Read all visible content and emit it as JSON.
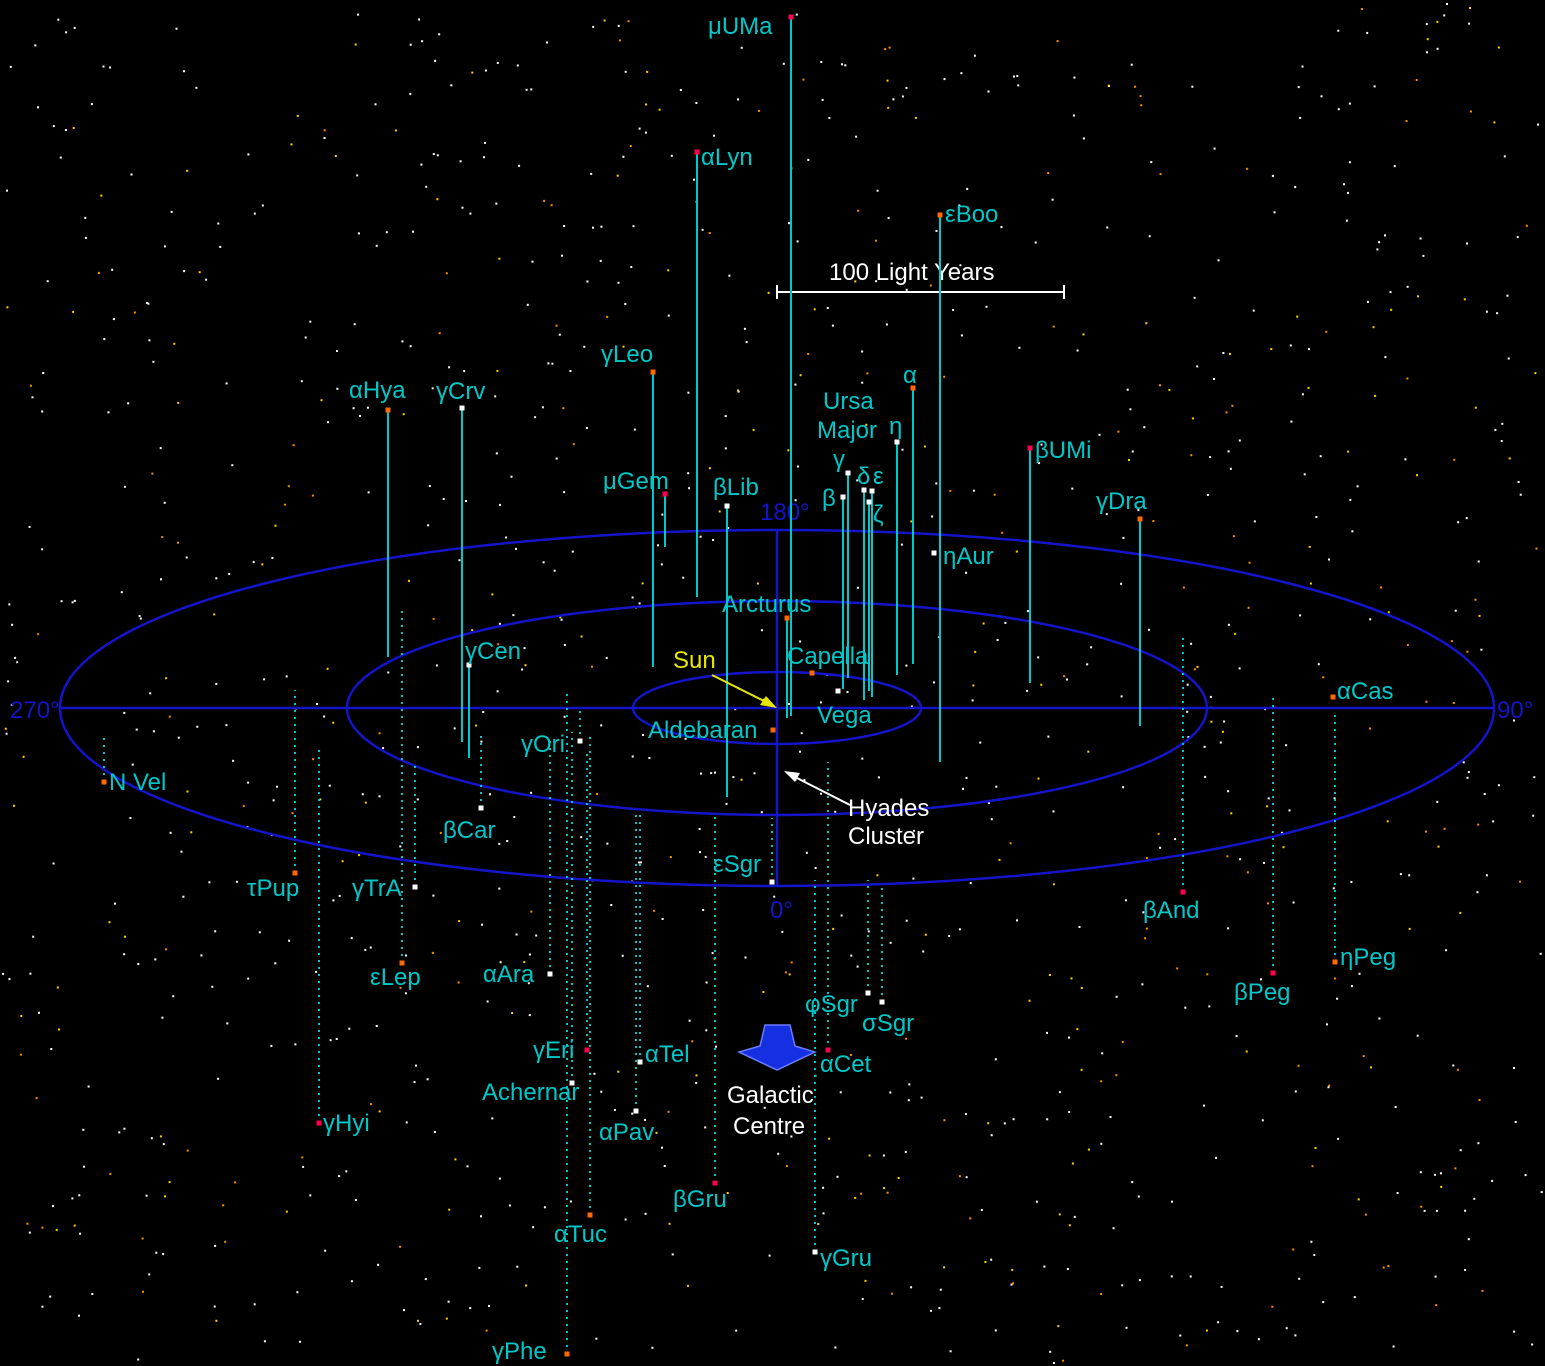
{
  "colors": {
    "background": "#000000",
    "ring": "#1414c8",
    "label": "#00c8c8",
    "stem": "#00c8c8",
    "sun": "#e6e600",
    "white": "#ffffff",
    "marker_orange": "#ff6a00",
    "marker_red": "#ff0050",
    "marker_white": "#ffffff",
    "galactic_centre": "#1530e0"
  },
  "degree_labels": {
    "d0": "0°",
    "d90": "90°",
    "d180": "180°",
    "d270": "270°"
  },
  "scale_bar": {
    "label": "100 Light Years"
  },
  "sun": {
    "label": "Sun"
  },
  "hyades": {
    "line1": "Hyades",
    "line2": "Cluster"
  },
  "galactic_centre": {
    "line1": "Galactic",
    "line2": "Centre"
  },
  "ursa_major": {
    "line1": "Ursa",
    "line2": "Major"
  },
  "stars": [
    {
      "name": "μUMa",
      "above": true
    },
    {
      "name": "αLyn",
      "above": true
    },
    {
      "name": "εBoo",
      "above": true
    },
    {
      "name": "γLeo",
      "above": true
    },
    {
      "name": "αHya",
      "above": true
    },
    {
      "name": "γCrv",
      "above": true
    },
    {
      "name": "α",
      "above": true
    },
    {
      "name": "η",
      "above": true
    },
    {
      "name": "βUMi",
      "above": true
    },
    {
      "name": "μGem",
      "above": true
    },
    {
      "name": "βLib",
      "above": true
    },
    {
      "name": "γ",
      "above": true
    },
    {
      "name": "δ",
      "above": true
    },
    {
      "name": "ε",
      "above": true
    },
    {
      "name": "β",
      "above": true
    },
    {
      "name": "ζ",
      "above": true
    },
    {
      "name": "γDra",
      "above": true
    },
    {
      "name": "ηAur",
      "above": true
    },
    {
      "name": "Arcturus",
      "above": true
    },
    {
      "name": "γCen",
      "above": true
    },
    {
      "name": "Capella",
      "above": true
    },
    {
      "name": "αCas",
      "above": true
    },
    {
      "name": "Vega",
      "above": true
    },
    {
      "name": "Aldebaran",
      "above": false
    },
    {
      "name": "γOri",
      "above": false
    },
    {
      "name": "N Vel",
      "above": false
    },
    {
      "name": "βCar",
      "above": false
    },
    {
      "name": "εSgr",
      "above": false
    },
    {
      "name": "τPup",
      "above": false
    },
    {
      "name": "γTrA",
      "above": false
    },
    {
      "name": "βAnd",
      "above": false
    },
    {
      "name": "ηPeg",
      "above": false
    },
    {
      "name": "εLep",
      "above": false
    },
    {
      "name": "αAra",
      "above": false
    },
    {
      "name": "βPeg",
      "above": false
    },
    {
      "name": "φSgr",
      "above": false
    },
    {
      "name": "σSgr",
      "above": false
    },
    {
      "name": "γEri",
      "above": false
    },
    {
      "name": "αTel",
      "above": false
    },
    {
      "name": "αCet",
      "above": false
    },
    {
      "name": "Achernar",
      "above": false
    },
    {
      "name": "γHyi",
      "above": false
    },
    {
      "name": "αPav",
      "above": false
    },
    {
      "name": "βGru",
      "above": false
    },
    {
      "name": "αTuc",
      "above": false
    },
    {
      "name": "γGru",
      "above": false
    },
    {
      "name": "γPhe",
      "above": false
    }
  ]
}
